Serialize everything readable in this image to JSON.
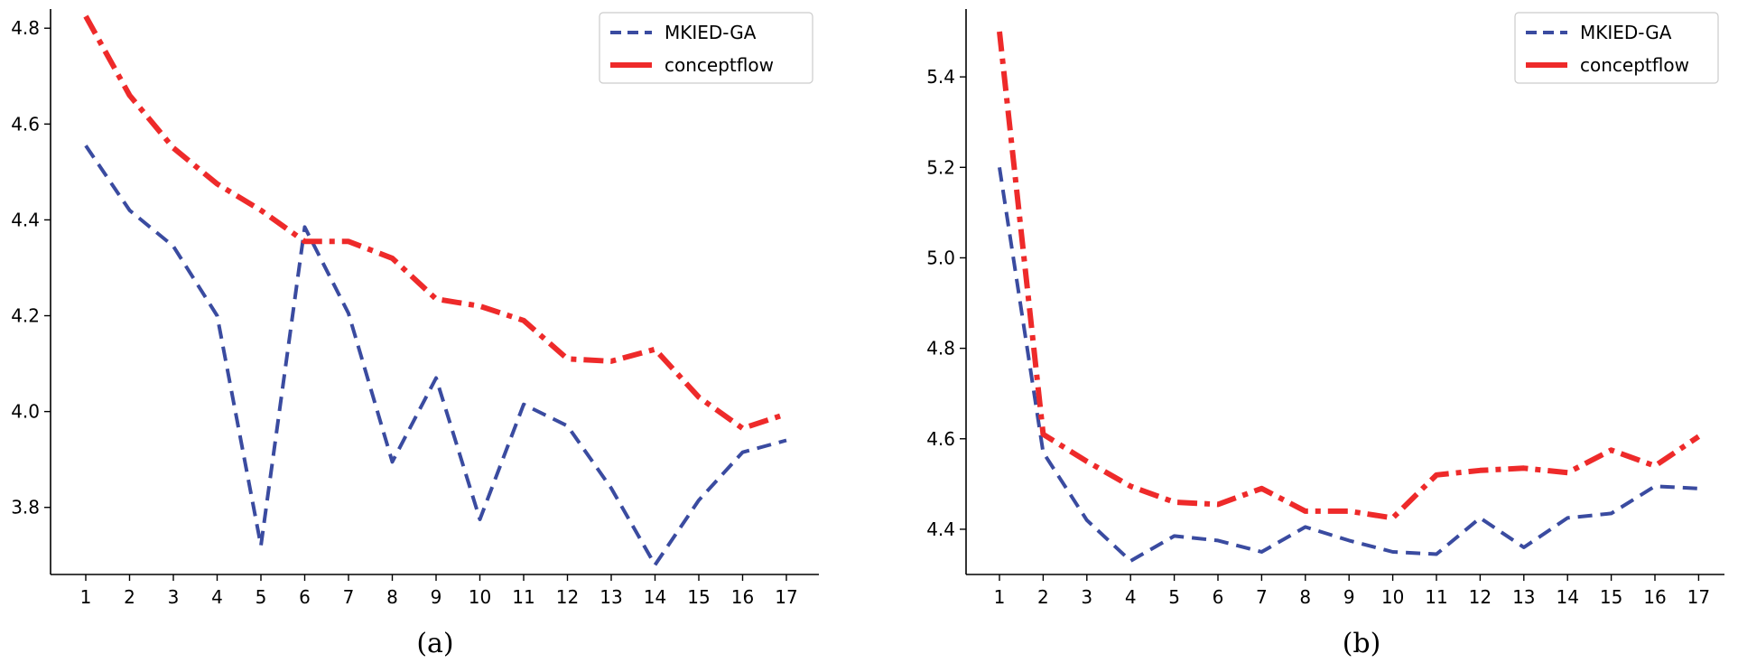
{
  "colors": {
    "mkied": "#3a4ba0",
    "conceptflow": "#ee2a2a"
  },
  "chart_data": [
    {
      "type": "line",
      "caption": "(a)",
      "categories": [
        1,
        2,
        3,
        4,
        5,
        6,
        7,
        8,
        9,
        10,
        11,
        12,
        13,
        14,
        15,
        16,
        17
      ],
      "ylim": [
        3.66,
        4.84
      ],
      "yticks": [
        3.8,
        4.0,
        4.2,
        4.4,
        4.6,
        4.8
      ],
      "legend_position": "top-right",
      "series": [
        {
          "name": "MKIED-GA",
          "style": "dashed",
          "values": [
            4.555,
            4.42,
            4.345,
            4.2,
            3.72,
            4.385,
            4.205,
            3.895,
            4.07,
            3.775,
            4.015,
            3.97,
            3.84,
            3.68,
            3.815,
            3.915,
            3.94
          ]
        },
        {
          "name": "conceptflow",
          "style": "dashdot",
          "values": [
            4.825,
            4.66,
            4.55,
            4.475,
            4.42,
            4.355,
            4.355,
            4.32,
            4.235,
            4.22,
            4.19,
            4.11,
            4.105,
            4.13,
            4.03,
            3.965,
            3.995
          ]
        }
      ]
    },
    {
      "type": "line",
      "caption": "(b)",
      "categories": [
        1,
        2,
        3,
        4,
        5,
        6,
        7,
        8,
        9,
        10,
        11,
        12,
        13,
        14,
        15,
        16,
        17
      ],
      "ylim": [
        4.3,
        5.55
      ],
      "yticks": [
        4.4,
        4.6,
        4.8,
        5.0,
        5.2,
        5.4
      ],
      "legend_position": "top-right",
      "series": [
        {
          "name": "MKIED-GA",
          "style": "dashed",
          "values": [
            5.2,
            4.57,
            4.42,
            4.33,
            4.385,
            4.375,
            4.35,
            4.405,
            4.375,
            4.35,
            4.345,
            4.425,
            4.36,
            4.425,
            4.435,
            4.495,
            4.49
          ]
        },
        {
          "name": "conceptflow",
          "style": "dashdot",
          "values": [
            5.5,
            4.61,
            4.55,
            4.495,
            4.46,
            4.455,
            4.49,
            4.44,
            4.44,
            4.425,
            4.52,
            4.53,
            4.535,
            4.525,
            4.575,
            4.54,
            4.605
          ]
        }
      ]
    }
  ]
}
